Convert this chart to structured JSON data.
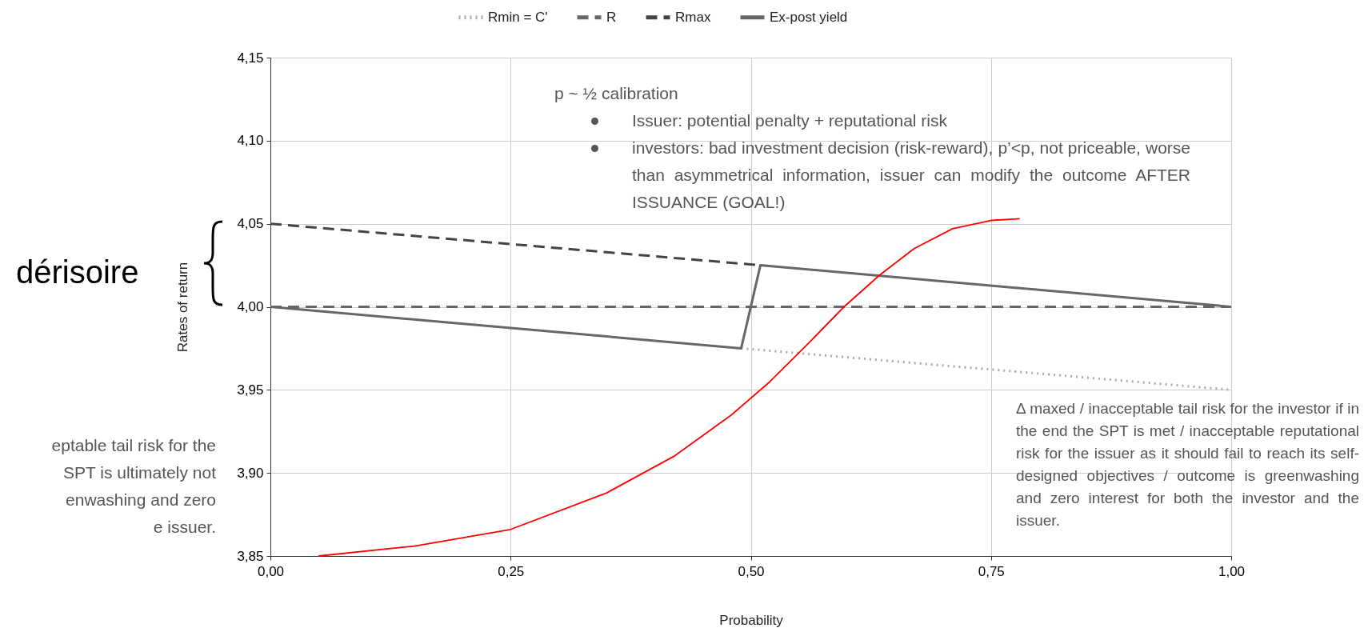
{
  "chart_data": {
    "type": "line",
    "xlabel": "Probability",
    "ylabel": "Rates of return",
    "xlim": [
      0,
      1
    ],
    "ylim": [
      3.85,
      4.15
    ],
    "xticks": [
      {
        "value": 0,
        "label": "0,00"
      },
      {
        "value": 0.25,
        "label": "0,25"
      },
      {
        "value": 0.5,
        "label": "0,50"
      },
      {
        "value": 0.75,
        "label": "0,75"
      },
      {
        "value": 1,
        "label": "1,00"
      }
    ],
    "yticks": [
      {
        "value": 3.85,
        "label": "3,85"
      },
      {
        "value": 3.9,
        "label": "3,90"
      },
      {
        "value": 3.95,
        "label": "3,95"
      },
      {
        "value": 4,
        "label": "4,00"
      },
      {
        "value": 4.05,
        "label": "4,05"
      },
      {
        "value": 4.1,
        "label": "4,10"
      },
      {
        "value": 4.15,
        "label": "4,15"
      }
    ],
    "grid": true,
    "legend": "top",
    "marker": "none",
    "series": [
      {
        "name": "Rmin = C'",
        "color": "#aaaaaa",
        "line_style": "dotted",
        "x": [
          0.49,
          1
        ],
        "values": [
          3.975,
          3.95
        ]
      },
      {
        "name": "R",
        "color": "#666666",
        "line_style": "dashed",
        "x": [
          0,
          1
        ],
        "values": [
          4.0,
          4.0
        ]
      },
      {
        "name": "Rmax",
        "color": "#444444",
        "line_style": "dashed",
        "x": [
          0,
          0.51
        ],
        "values": [
          4.05,
          4.025
        ]
      },
      {
        "name": "Ex-post yield",
        "color": "#666666",
        "line_style": "solid",
        "x": [
          0,
          0.49,
          0.51,
          1
        ],
        "values": [
          4.0,
          3.975,
          4.025,
          4.0
        ]
      },
      {
        "color": "#ff0000",
        "line_style": "solid",
        "x": [
          0.05,
          0.15,
          0.25,
          0.35,
          0.42,
          0.48,
          0.52,
          0.56,
          0.597,
          0.634,
          0.67,
          0.71,
          0.75,
          0.78
        ],
        "values": [
          3.85,
          3.856,
          3.866,
          3.888,
          3.91,
          3.935,
          3.955,
          3.978,
          4.0,
          4.019,
          4.035,
          4.047,
          4.052,
          4.053
        ]
      }
    ],
    "annotations": [
      "p ~ ½ calibration",
      "Issuer: potential penalty + reputational risk",
      "investors: bad investment decision (risk-reward), p’<p, not priceable, worse than asymmetrical information, issuer can modify the outcome AFTER ISSUANCE (GOAL!)",
      "dérisoire",
      "eptable tail risk for the\nSPT is ultimately not\nenwashing and zero\ne issuer.",
      "Δ maxed / inacceptable tail risk for the investor if in the end the SPT is met / inacceptable reputational risk for the issuer as it should fail to reach its self-designed objectives / outcome is greenwashing and zero interest for both the investor and the issuer."
    ]
  }
}
